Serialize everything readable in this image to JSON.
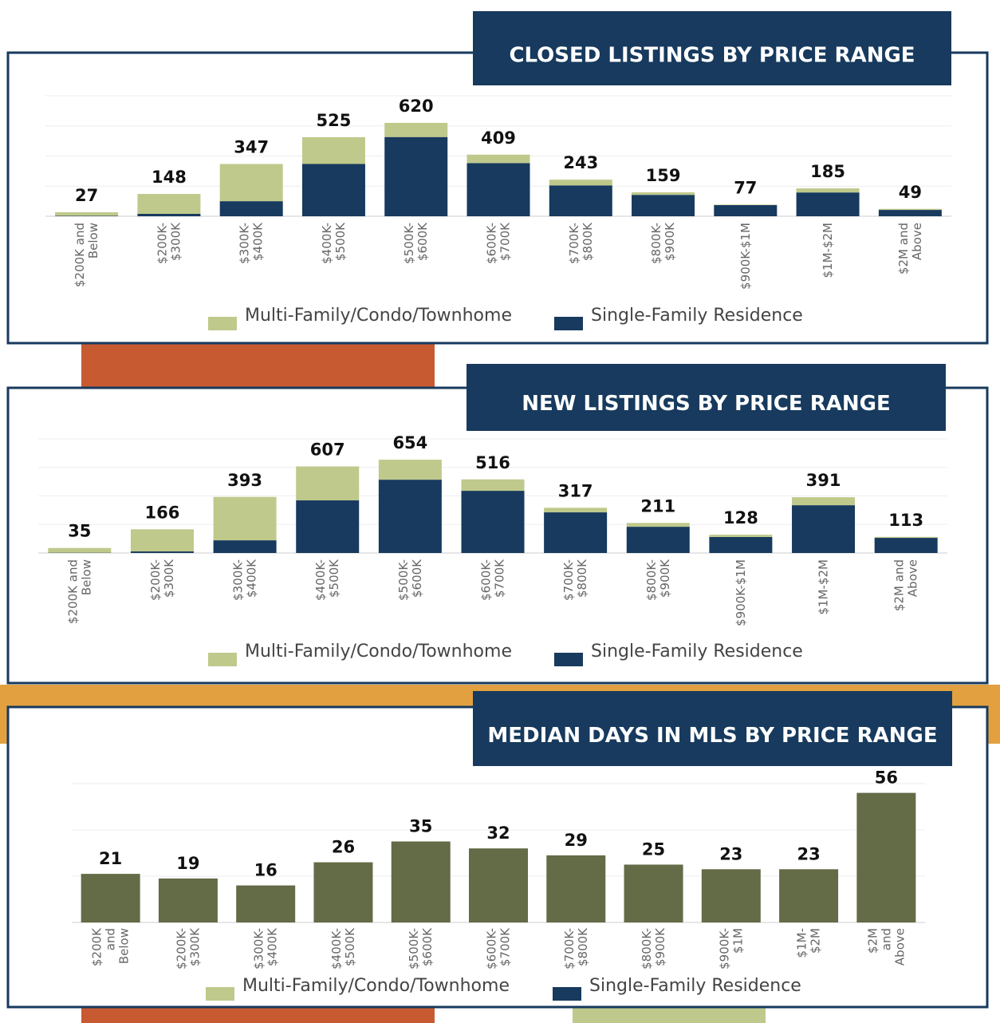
{
  "chart_data": [
    {
      "type": "bar",
      "title": "CLOSED LISTINGS BY PRICE RANGE",
      "stacked": true,
      "grid": true,
      "categories": [
        "$200K and Below",
        "$200K- $300K",
        "$300K- $400K",
        "$400K- $500K",
        "$500K- $600K",
        "$600K- $700K",
        "$700K- $800K",
        "$800K- $900K",
        "$900K-$1M",
        "$1M-$2M",
        "$2M and Above"
      ],
      "series": [
        {
          "name": "Single-Family Residence",
          "color": "#173a5e",
          "values": [
            3,
            16,
            100,
            347,
            526,
            353,
            205,
            142,
            74,
            158,
            42
          ]
        },
        {
          "name": "Multi-Family/Condo/Townhome",
          "color": "#bfc98b",
          "values": [
            24,
            132,
            247,
            178,
            94,
            56,
            38,
            17,
            3,
            27,
            7
          ]
        }
      ],
      "totals": [
        27,
        148,
        347,
        525,
        620,
        409,
        243,
        159,
        77,
        185,
        49
      ],
      "ylim": [
        0,
        800
      ],
      "yticks": [
        0,
        200,
        400,
        600,
        800
      ]
    },
    {
      "type": "bar",
      "title": "NEW LISTINGS BY PRICE RANGE",
      "stacked": true,
      "grid": true,
      "categories": [
        "$200K and Below",
        "$200K- $300K",
        "$300K- $400K",
        "$400K- $500K",
        "$500K- $600K",
        "$600K- $700K",
        "$700K- $800K",
        "$800K- $900K",
        "$900K-$1M",
        "$1M-$2M",
        "$2M and Above"
      ],
      "series": [
        {
          "name": "Single-Family Residence",
          "color": "#173a5e",
          "values": [
            2,
            11,
            89,
            369,
            514,
            436,
            285,
            184,
            112,
            335,
            106
          ]
        },
        {
          "name": "Multi-Family/Condo/Townhome",
          "color": "#bfc98b",
          "values": [
            33,
            155,
            304,
            238,
            140,
            80,
            32,
            27,
            16,
            56,
            7
          ]
        }
      ],
      "totals": [
        35,
        166,
        393,
        607,
        654,
        516,
        317,
        211,
        128,
        391,
        113
      ],
      "ylim": [
        0,
        800
      ],
      "yticks": [
        0,
        200,
        400,
        600,
        800
      ]
    },
    {
      "type": "bar",
      "title": "MEDIAN DAYS IN MLS BY PRICE RANGE",
      "grid": true,
      "categories": [
        "$200K and Below",
        "$200K- $300K",
        "$300K- $400K",
        "$400K- $500K",
        "$500K- $600K",
        "$600K- $700K",
        "$700K- $800K",
        "$800K- $900K",
        "$900K- $1M",
        "$1M- $2M",
        "$2M and Above"
      ],
      "values": [
        21,
        19,
        16,
        26,
        35,
        32,
        29,
        25,
        23,
        23,
        56
      ],
      "color": "#636b47",
      "legend": [
        {
          "name": "Multi-Family/Condo/Townhome",
          "color": "#bfc98b"
        },
        {
          "name": "Single-Family Residence",
          "color": "#173a5e"
        }
      ],
      "ylim": [
        0,
        60
      ],
      "yticks": [
        0,
        20,
        40,
        60
      ]
    }
  ]
}
